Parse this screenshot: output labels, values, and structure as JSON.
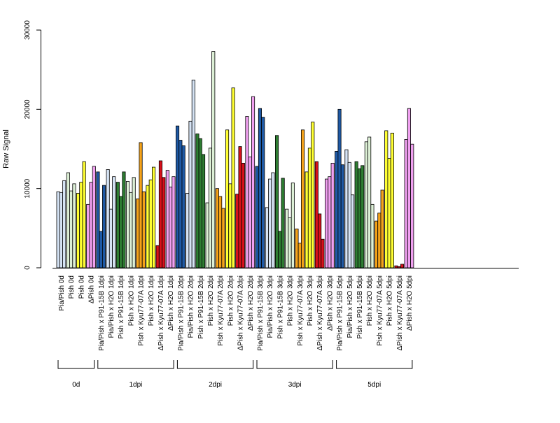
{
  "chart_data": {
    "type": "bar",
    "ylabel": "Raw Signal",
    "ylim": [
      0,
      30000
    ],
    "yticks": [
      0,
      10000,
      20000,
      30000
    ],
    "ytick_labels": [
      "0",
      "10000",
      "20000",
      "30000"
    ],
    "grid": false,
    "legend": "none",
    "categories": [
      {
        "label": "Pia/Pish 0d",
        "color": "#d6e4f5",
        "values": [
          9600,
          9500,
          11000
        ]
      },
      {
        "label": "Pish 0d",
        "color": "#ddf0d6",
        "values": [
          12000,
          9700,
          10600
        ]
      },
      {
        "label": "Pish 0d",
        "color": "#ffff33",
        "values": [
          9400,
          10800,
          13400
        ]
      },
      {
        "label": "ΔPish 0d",
        "color": "#f0a0f0",
        "values": [
          8000,
          10800,
          12800
        ]
      },
      {
        "label": "Pia/Pish x P91-15B 1dpi",
        "color": "#1f5aa6",
        "values": [
          12100,
          4600,
          10400
        ]
      },
      {
        "label": "Pia/Pish x H2O 1dpi",
        "color": "#d6e4f5",
        "values": [
          12400,
          7400,
          11500
        ]
      },
      {
        "label": "Pish x P91-15B 1dpi",
        "color": "#2e7d32",
        "values": [
          10800,
          9000,
          12100
        ]
      },
      {
        "label": "Pish x H2O 1dpi",
        "color": "#ddf0d6",
        "values": [
          10900,
          9500,
          11400
        ]
      },
      {
        "label": "Pish x Kyu77-07A 1dpi",
        "color": "#f5a31a",
        "values": [
          8700,
          15800,
          9600
        ]
      },
      {
        "label": "Pish x H2O 1dpi",
        "color": "#ffff33",
        "values": [
          10400,
          11100,
          12700
        ]
      },
      {
        "label": "ΔPish x Kyu77-07A 1dpi",
        "color": "#d7111b",
        "values": [
          2800,
          13500,
          11400
        ]
      },
      {
        "label": "ΔPish x H2O 1dpi",
        "color": "#f0a0f0",
        "values": [
          12300,
          10200,
          11500
        ]
      },
      {
        "label": "Pia/Pish x P91-15B 2dpi",
        "color": "#1f5aa6",
        "values": [
          17900,
          16100,
          15400
        ]
      },
      {
        "label": "Pia/Pish x H2O 2dpi",
        "color": "#d6e4f5",
        "values": [
          9400,
          18500,
          23700
        ]
      },
      {
        "label": "Pish x P91-15B 2dpi",
        "color": "#2e7d32",
        "values": [
          16900,
          16300,
          14300
        ]
      },
      {
        "label": "Pish x H2O 2dpi",
        "color": "#ddf0d6",
        "values": [
          8200,
          15100,
          27300
        ]
      },
      {
        "label": "Pish x Kyu77-07A 2dpi",
        "color": "#f5a31a",
        "values": [
          10000,
          9000,
          7500
        ]
      },
      {
        "label": "Pish x H2O 2dpi",
        "color": "#ffff33",
        "values": [
          17400,
          10600,
          22700
        ]
      },
      {
        "label": "ΔPish x Kyu77-07A 2dpi",
        "color": "#d7111b",
        "values": [
          9300,
          15300,
          13200
        ]
      },
      {
        "label": "ΔPish x H2O 2dpi",
        "color": "#f0a0f0",
        "values": [
          19100,
          14000,
          21600
        ]
      },
      {
        "label": "Pia/Pish x P91-15B 3dpi",
        "color": "#1f5aa6",
        "values": [
          12800,
          20100,
          19000
        ]
      },
      {
        "label": "Pia/Pish x H2O 3dpi",
        "color": "#d6e4f5",
        "values": [
          7600,
          11200,
          12000
        ]
      },
      {
        "label": "Pish x P91-15B 3dpi",
        "color": "#2e7d32",
        "values": [
          16700,
          4600,
          11300
        ]
      },
      {
        "label": "Pish x H2O 3dpi",
        "color": "#ddf0d6",
        "values": [
          7400,
          6300,
          10700
        ]
      },
      {
        "label": "Pish x Kyu77-07A 3dpi",
        "color": "#f5a31a",
        "values": [
          4900,
          3100,
          17400
        ]
      },
      {
        "label": "Pish x H2O 3dpi",
        "color": "#ffff33",
        "values": [
          12100,
          15100,
          18400
        ]
      },
      {
        "label": "ΔPish x Kyu77-07A 3dpi",
        "color": "#d7111b",
        "values": [
          13400,
          6800,
          3600
        ]
      },
      {
        "label": "ΔPish x H2O 3dpi",
        "color": "#f0a0f0",
        "values": [
          11200,
          11500,
          13200
        ]
      },
      {
        "label": "Pia/Pish x P91-15B 5dpi",
        "color": "#1f5aa6",
        "values": [
          14700,
          20000,
          13000
        ]
      },
      {
        "label": "Pia/Pish x H2O 5dpi",
        "color": "#d6e4f5",
        "values": [
          14900,
          13300,
          9200
        ]
      },
      {
        "label": "Pish x P91-15B 5dpi",
        "color": "#2e7d32",
        "values": [
          13400,
          12500,
          12900
        ]
      },
      {
        "label": "Pish x H2O 5dpi",
        "color": "#ddf0d6",
        "values": [
          15900,
          16500,
          8000
        ]
      },
      {
        "label": "Pish x Kyu77-07A 5dpi",
        "color": "#f5a31a",
        "values": [
          5900,
          6900,
          9800
        ]
      },
      {
        "label": "Pish x H2O 5dpi",
        "color": "#ffff33",
        "values": [
          17300,
          13800,
          17000
        ]
      },
      {
        "label": "ΔPish x Kyu77-07A 5dpi",
        "color": "#d7111b",
        "values": [
          250,
          150,
          450
        ]
      },
      {
        "label": "ΔPish x H2O 5dpi",
        "color": "#f0a0f0",
        "values": [
          16200,
          20100,
          15600
        ]
      }
    ],
    "groups": [
      {
        "label": "0d",
        "from": 0,
        "to": 3
      },
      {
        "label": "1dpi",
        "from": 4,
        "to": 11
      },
      {
        "label": "2dpi",
        "from": 12,
        "to": 19
      },
      {
        "label": "3dpi",
        "from": 20,
        "to": 27
      },
      {
        "label": "5dpi",
        "from": 28,
        "to": 35
      }
    ]
  }
}
